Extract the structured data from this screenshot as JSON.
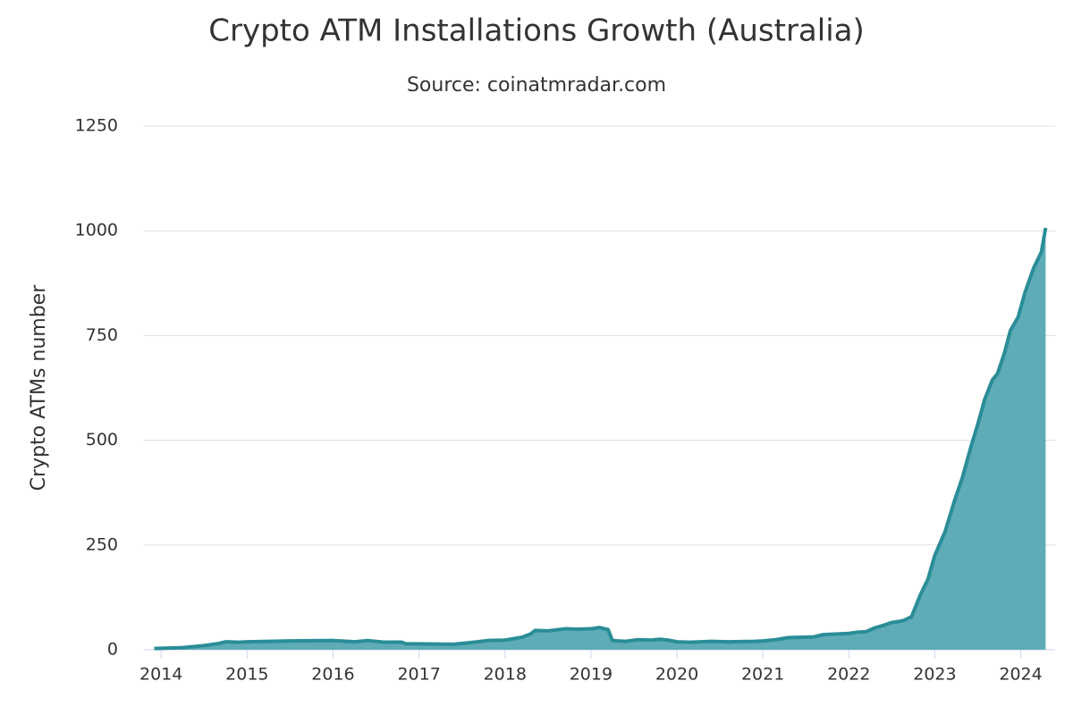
{
  "chart_data": {
    "type": "area",
    "title": "Crypto ATM Installations Growth (Australia)",
    "subtitle": "Source: coinatmradar.com",
    "y_label": "Crypto ATMs number",
    "color": "#2a8d98",
    "fill": "#5eacb8",
    "xlim": [
      2013.8,
      2024.4
    ],
    "xticks": [
      2014,
      2015,
      2016,
      2017,
      2018,
      2019,
      2020,
      2021,
      2022,
      2023,
      2024
    ],
    "ylim": [
      0,
      1250
    ],
    "yticks": [
      0,
      250,
      500,
      750,
      1000,
      1250
    ],
    "grid": true,
    "x": [
      2013.92,
      2014.25,
      2014.5,
      2014.67,
      2014.75,
      2014.9,
      2015.0,
      2015.5,
      2016.0,
      2016.25,
      2016.4,
      2016.6,
      2016.8,
      2016.85,
      2017.0,
      2017.4,
      2017.6,
      2017.8,
      2018.0,
      2018.2,
      2018.3,
      2018.35,
      2018.5,
      2018.7,
      2018.85,
      2019.0,
      2019.1,
      2019.2,
      2019.25,
      2019.4,
      2019.55,
      2019.7,
      2019.8,
      2019.9,
      2020.0,
      2020.15,
      2020.4,
      2020.6,
      2020.9,
      2021.0,
      2021.15,
      2021.3,
      2021.5,
      2021.6,
      2021.7,
      2021.8,
      2022.0,
      2022.1,
      2022.2,
      2022.3,
      2022.4,
      2022.5,
      2022.6,
      2022.64,
      2022.73,
      2022.83,
      2022.92,
      2023.0,
      2023.12,
      2023.23,
      2023.32,
      2023.42,
      2023.5,
      2023.58,
      2023.67,
      2023.73,
      2023.81,
      2023.88,
      2023.97,
      2024.05,
      2024.15,
      2024.24,
      2024.29
    ],
    "values": [
      3,
      5,
      10,
      15,
      19,
      18,
      19,
      21,
      22,
      19,
      22,
      18,
      18,
      14,
      14,
      13,
      17,
      22,
      23,
      30,
      38,
      46,
      45,
      50,
      49,
      50,
      53,
      48,
      22,
      20,
      24,
      23,
      25,
      23,
      19,
      18,
      20,
      19,
      20,
      21,
      24,
      29,
      30,
      31,
      36,
      37,
      39,
      42,
      43,
      52,
      58,
      65,
      68,
      70,
      79,
      130,
      168,
      225,
      282,
      356,
      410,
      484,
      538,
      597,
      644,
      659,
      708,
      762,
      794,
      853,
      911,
      949,
      1007
    ]
  }
}
